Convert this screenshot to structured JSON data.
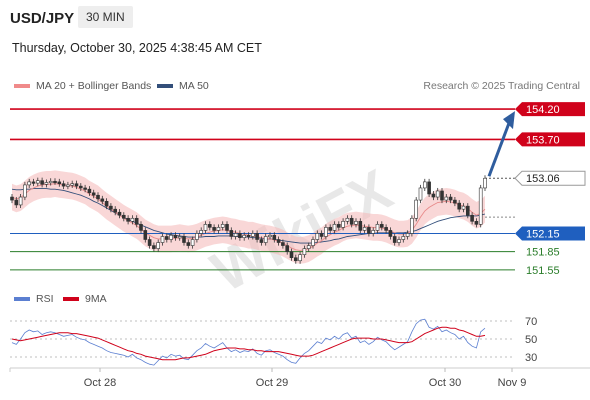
{
  "header": {
    "symbol": "USD/JPY",
    "interval": "30 MIN",
    "datetime": "Thursday, October 30, 2025 4:38:45 AM CET"
  },
  "legend": {
    "ma20_label": "MA 20 + Bollinger Bands",
    "ma50_label": "MA 50",
    "credit": "Research © 2025 Trading Central",
    "rsi_label": "RSI",
    "ma9_label": "9MA"
  },
  "colors": {
    "resistance": "#d0021b",
    "support": "#2a7d2a",
    "pivot": "#1f5fbf",
    "ma50": "#334f7a",
    "bollinger": "#f4b7b7",
    "arrow": "#2f5d9e",
    "rsi": "#5b7fd1",
    "rsi_ma": "#d0021b"
  },
  "watermark": "WikiFX",
  "chart_data": [
    {
      "type": "candlestick",
      "title": "USD/JPY 30 MIN",
      "x_ticks": [
        "Oct 28",
        "Oct 29",
        "Oct 30",
        "Nov 9"
      ],
      "ylim": [
        151.3,
        154.35
      ],
      "levels": [
        {
          "label": "154.20",
          "value": 154.2,
          "kind": "resistance"
        },
        {
          "label": "153.70",
          "value": 153.7,
          "kind": "resistance"
        },
        {
          "label": "153.06",
          "value": 153.06,
          "kind": "current"
        },
        {
          "label": "152.15",
          "value": 152.15,
          "kind": "pivot"
        },
        {
          "label": "151.85",
          "value": 151.85,
          "kind": "support"
        },
        {
          "label": "151.55",
          "value": 151.55,
          "kind": "support"
        }
      ],
      "close_series": [
        152.7,
        152.62,
        152.75,
        152.95,
        153.0,
        152.98,
        153.02,
        152.96,
        152.99,
        153.01,
        153.0,
        152.97,
        152.93,
        152.95,
        152.97,
        152.93,
        152.9,
        152.88,
        152.82,
        152.78,
        152.72,
        152.68,
        152.6,
        152.55,
        152.5,
        152.45,
        152.4,
        152.35,
        152.4,
        152.3,
        152.2,
        152.05,
        151.95,
        151.9,
        152.0,
        152.1,
        152.05,
        152.12,
        152.08,
        152.1,
        152.0,
        151.95,
        152.05,
        152.15,
        152.2,
        152.3,
        152.25,
        152.2,
        152.25,
        152.3,
        152.2,
        152.1,
        152.15,
        152.08,
        152.12,
        152.1,
        152.15,
        152.05,
        152.0,
        152.1,
        152.12,
        152.05,
        152.0,
        151.95,
        151.85,
        151.75,
        151.7,
        151.8,
        151.9,
        151.95,
        152.05,
        152.15,
        152.1,
        152.25,
        152.2,
        152.3,
        152.25,
        152.35,
        152.4,
        152.3,
        152.35,
        152.2,
        152.25,
        152.15,
        152.2,
        152.3,
        152.25,
        152.2,
        152.1,
        152.0,
        152.05,
        152.1,
        152.15,
        152.4,
        152.7,
        152.9,
        153.0,
        152.8,
        152.75,
        152.85,
        152.7,
        152.75,
        152.7,
        152.65,
        152.55,
        152.6,
        152.45,
        152.35,
        152.3,
        152.9,
        153.06
      ],
      "ma20_series": [
        152.75,
        152.72,
        152.74,
        152.8,
        152.86,
        152.9,
        152.93,
        152.95,
        152.96,
        152.96,
        152.97,
        152.96,
        152.95,
        152.94,
        152.93,
        152.91,
        152.88,
        152.85,
        152.8,
        152.76,
        152.72,
        152.66,
        152.6,
        152.55,
        152.5,
        152.45,
        152.4,
        152.36,
        152.32,
        152.28,
        152.22,
        152.16,
        152.12,
        152.08,
        152.06,
        152.06,
        152.06,
        152.06,
        152.07,
        152.08,
        152.07,
        152.06,
        152.07,
        152.09,
        152.12,
        152.15,
        152.17,
        152.19,
        152.2,
        152.21,
        152.2,
        152.18,
        152.17,
        152.15,
        152.14,
        152.12,
        152.12,
        152.1,
        152.08,
        152.07,
        152.06,
        152.04,
        152.02,
        151.99,
        151.95,
        151.91,
        151.88,
        151.87,
        151.88,
        151.9,
        151.94,
        151.99,
        152.03,
        152.09,
        152.13,
        152.17,
        152.2,
        152.24,
        152.27,
        152.28,
        152.29,
        152.28,
        152.27,
        152.26,
        152.25,
        152.25,
        152.24,
        152.22,
        152.19,
        152.16,
        152.14,
        152.14,
        152.15,
        152.2,
        152.3,
        152.42,
        152.52,
        152.58,
        152.62,
        152.66,
        152.67,
        152.68,
        152.67,
        152.65,
        152.62,
        152.6,
        152.56,
        152.5,
        152.45,
        152.48,
        152.55
      ],
      "ma50_series": [
        152.88,
        152.87,
        152.87,
        152.88,
        152.88,
        152.89,
        152.89,
        152.89,
        152.89,
        152.88,
        152.88,
        152.87,
        152.86,
        152.84,
        152.82,
        152.8,
        152.78,
        152.75,
        152.72,
        152.68,
        152.65,
        152.61,
        152.57,
        152.53,
        152.49,
        152.45,
        152.41,
        152.38,
        152.35,
        152.32,
        152.29,
        152.26,
        152.23,
        152.2,
        152.18,
        152.16,
        152.14,
        152.13,
        152.12,
        152.11,
        152.1,
        152.09,
        152.09,
        152.09,
        152.09,
        152.1,
        152.1,
        152.1,
        152.11,
        152.11,
        152.11,
        152.11,
        152.1,
        152.1,
        152.09,
        152.09,
        152.08,
        152.08,
        152.07,
        152.06,
        152.06,
        152.05,
        152.04,
        152.03,
        152.02,
        152.01,
        152.0,
        151.99,
        151.99,
        151.99,
        151.99,
        152.0,
        152.01,
        152.02,
        152.03,
        152.05,
        152.06,
        152.08,
        152.1,
        152.11,
        152.12,
        152.13,
        152.14,
        152.15,
        152.15,
        152.16,
        152.16,
        152.16,
        152.16,
        152.16,
        152.16,
        152.16,
        152.17,
        152.18,
        152.2,
        152.23,
        152.26,
        152.29,
        152.32,
        152.35,
        152.37,
        152.39,
        152.41,
        152.42,
        152.43,
        152.44,
        152.44,
        152.44,
        152.44,
        152.45,
        152.47
      ],
      "projection": {
        "from": 153.06,
        "to": 154.2
      }
    },
    {
      "type": "line",
      "title": "RSI",
      "ylim": [
        20,
        80
      ],
      "y_ticks": [
        70,
        50,
        30
      ],
      "series": [
        {
          "name": "RSI",
          "values": [
            46,
            44,
            50,
            57,
            60,
            58,
            59,
            55,
            57,
            58,
            57,
            55,
            53,
            54,
            55,
            52,
            50,
            49,
            46,
            44,
            42,
            40,
            37,
            35,
            34,
            33,
            32,
            30,
            33,
            29,
            27,
            24,
            22,
            21,
            26,
            31,
            29,
            33,
            31,
            32,
            28,
            27,
            32,
            37,
            40,
            45,
            42,
            40,
            43,
            46,
            40,
            36,
            38,
            35,
            37,
            36,
            39,
            34,
            32,
            37,
            38,
            35,
            33,
            31,
            27,
            24,
            23,
            29,
            34,
            37,
            42,
            47,
            45,
            51,
            49,
            53,
            50,
            55,
            57,
            51,
            53,
            46,
            48,
            44,
            47,
            52,
            49,
            47,
            42,
            38,
            41,
            44,
            47,
            58,
            67,
            71,
            72,
            63,
            61,
            64,
            58,
            60,
            57,
            55,
            50,
            53,
            46,
            42,
            40,
            58,
            62
          ]
        },
        {
          "name": "9MA",
          "values": [
            50,
            49,
            48,
            49,
            50,
            51,
            52,
            53,
            54,
            55,
            56,
            57,
            57,
            57,
            56,
            56,
            55,
            54,
            53,
            52,
            51,
            49,
            47,
            45,
            43,
            41,
            39,
            37,
            36,
            34,
            33,
            31,
            30,
            29,
            28,
            27,
            27,
            27,
            27,
            28,
            29,
            29,
            30,
            31,
            32,
            33,
            35,
            37,
            38,
            39,
            40,
            40,
            40,
            39,
            39,
            38,
            38,
            37,
            37,
            36,
            36,
            36,
            36,
            35,
            34,
            33,
            32,
            31,
            31,
            31,
            32,
            34,
            36,
            38,
            40,
            42,
            44,
            46,
            48,
            50,
            51,
            51,
            51,
            51,
            50,
            50,
            50,
            49,
            48,
            47,
            46,
            46,
            46,
            47,
            50,
            53,
            56,
            58,
            60,
            62,
            63,
            63,
            62,
            62,
            60,
            59,
            57,
            55,
            53,
            53,
            54
          ]
        }
      ]
    }
  ]
}
